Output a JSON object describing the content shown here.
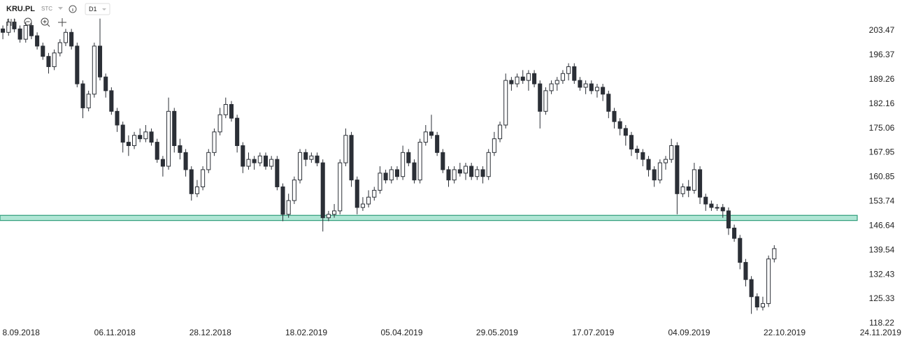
{
  "header": {
    "symbol": "KRU.PL",
    "source": "STC",
    "interval": "D1"
  },
  "chart_data": {
    "type": "candlestick",
    "open": [
      204,
      203,
      206,
      204,
      201,
      205,
      202,
      199,
      196,
      193,
      197,
      200,
      203,
      199,
      188,
      181,
      185,
      199,
      190,
      186,
      180,
      176,
      171,
      170,
      173,
      172,
      174,
      171,
      166,
      164,
      180,
      170,
      168,
      163,
      156,
      158,
      163,
      168,
      174,
      179,
      182,
      178,
      170,
      164,
      166,
      165,
      167,
      164,
      166,
      158,
      150,
      154,
      160,
      168,
      166,
      167,
      165,
      149,
      150,
      151,
      165,
      173,
      160,
      152,
      153,
      155,
      157,
      162,
      160,
      163,
      161,
      168,
      165,
      160,
      171,
      174,
      173,
      168,
      163,
      160,
      163,
      162,
      164,
      161,
      163,
      161,
      168,
      172,
      176,
      189,
      188,
      190,
      189,
      191,
      188,
      180,
      186,
      188,
      189,
      191,
      193,
      189,
      187,
      188,
      186,
      187,
      185,
      180,
      177,
      175,
      173,
      169,
      168,
      166,
      163,
      160,
      165,
      166,
      170,
      156,
      158,
      157,
      163,
      155,
      153,
      152,
      152,
      151,
      146,
      143,
      136,
      131,
      126,
      123,
      124,
      137
    ],
    "high": [
      205,
      207,
      207,
      205,
      206,
      206,
      203,
      200,
      197,
      198,
      201,
      204,
      204,
      200,
      189,
      186,
      200,
      207,
      191,
      187,
      181,
      177,
      173,
      174,
      175,
      176,
      175,
      172,
      167,
      184,
      181,
      172,
      169,
      164,
      160,
      164,
      169,
      175,
      181,
      184,
      183,
      179,
      171,
      168,
      167,
      168,
      168,
      167,
      167,
      159,
      156,
      161,
      169,
      169,
      168,
      168,
      166,
      151,
      153,
      166,
      175,
      174,
      161,
      155,
      157,
      158,
      164,
      163,
      164,
      164,
      170,
      169,
      166,
      172,
      176,
      179,
      174,
      169,
      164,
      164,
      165,
      165,
      165,
      164,
      164,
      169,
      174,
      177,
      191,
      190,
      191,
      192,
      192,
      192,
      189,
      187,
      189,
      190,
      192,
      194,
      194,
      190,
      189,
      189,
      188,
      188,
      186,
      181,
      178,
      176,
      174,
      170,
      169,
      167,
      164,
      166,
      167,
      172,
      171,
      159,
      160,
      165,
      164,
      156,
      154,
      153,
      153,
      152,
      147,
      144,
      137,
      132,
      127,
      126,
      138,
      141
    ],
    "low": [
      201,
      202,
      203,
      200,
      200,
      201,
      198,
      195,
      191,
      192,
      196,
      199,
      198,
      187,
      178,
      180,
      184,
      189,
      184,
      179,
      174,
      168,
      167,
      169,
      171,
      171,
      170,
      165,
      161,
      163,
      168,
      166,
      161,
      154,
      155,
      157,
      162,
      167,
      173,
      178,
      177,
      168,
      162,
      163,
      163,
      164,
      163,
      163,
      157,
      148,
      149,
      153,
      159,
      164,
      165,
      164,
      145,
      148,
      149,
      150,
      164,
      158,
      150,
      151,
      152,
      154,
      156,
      159,
      159,
      160,
      160,
      164,
      159,
      159,
      170,
      172,
      167,
      162,
      158,
      159,
      161,
      160,
      160,
      160,
      159,
      160,
      167,
      171,
      175,
      186,
      187,
      188,
      186,
      187,
      175,
      179,
      185,
      186,
      188,
      189,
      188,
      186,
      185,
      185,
      184,
      183,
      178,
      175,
      173,
      170,
      167,
      166,
      164,
      161,
      158,
      159,
      163,
      165,
      150,
      155,
      155,
      156,
      153,
      151,
      151,
      151,
      149,
      144,
      142,
      134,
      129,
      121,
      122,
      122,
      123,
      136
    ],
    "close": [
      203,
      206,
      204,
      201,
      205,
      202,
      199,
      196,
      193,
      197,
      200,
      203,
      199,
      188,
      181,
      185,
      199,
      190,
      186,
      180,
      176,
      171,
      170,
      173,
      172,
      174,
      171,
      166,
      164,
      180,
      170,
      168,
      163,
      156,
      158,
      163,
      168,
      174,
      179,
      182,
      178,
      170,
      164,
      166,
      165,
      167,
      164,
      166,
      158,
      150,
      154,
      160,
      168,
      166,
      167,
      165,
      149,
      150,
      151,
      165,
      173,
      160,
      152,
      153,
      155,
      157,
      162,
      160,
      163,
      161,
      168,
      165,
      160,
      171,
      174,
      173,
      168,
      163,
      160,
      163,
      162,
      164,
      161,
      163,
      161,
      168,
      172,
      176,
      189,
      188,
      190,
      189,
      191,
      188,
      180,
      186,
      188,
      189,
      191,
      193,
      189,
      187,
      188,
      186,
      187,
      185,
      180,
      177,
      175,
      173,
      169,
      168,
      166,
      163,
      160,
      165,
      166,
      170,
      156,
      158,
      157,
      163,
      155,
      153,
      152,
      152,
      151,
      146,
      143,
      136,
      131,
      126,
      123,
      124,
      137,
      140
    ],
    "up_color": "#ffffff",
    "down_color": "#2b2f36",
    "outline_color": "#2b2f36",
    "support_zone": [
      148.2,
      149.7
    ],
    "zone_color": "#8fdcc3",
    "zone_edge_color": "#2e9c7a",
    "ylim": [
      117.2,
      212.42
    ],
    "yticks": [
      203.47,
      196.37,
      189.26,
      182.16,
      175.06,
      167.95,
      160.85,
      153.74,
      146.64,
      139.54,
      132.43,
      125.33,
      118.22
    ],
    "xlim": [
      0,
      157
    ],
    "xticks": [
      {
        "value": 3.7,
        "label": "8.09.2018"
      },
      {
        "value": 20.1,
        "label": "06.11.2018"
      },
      {
        "value": 36.8,
        "label": "28.12.2018"
      },
      {
        "value": 53.6,
        "label": "18.02.2019"
      },
      {
        "value": 70.3,
        "label": "05.04.2019"
      },
      {
        "value": 87.0,
        "label": "29.05.2019"
      },
      {
        "value": 103.8,
        "label": "17.07.2019"
      },
      {
        "value": 120.6,
        "label": "04.09.2019"
      },
      {
        "value": 137.3,
        "label": "22.10.2019"
      },
      {
        "value": 154.1,
        "label": "24.11.2019"
      }
    ]
  }
}
